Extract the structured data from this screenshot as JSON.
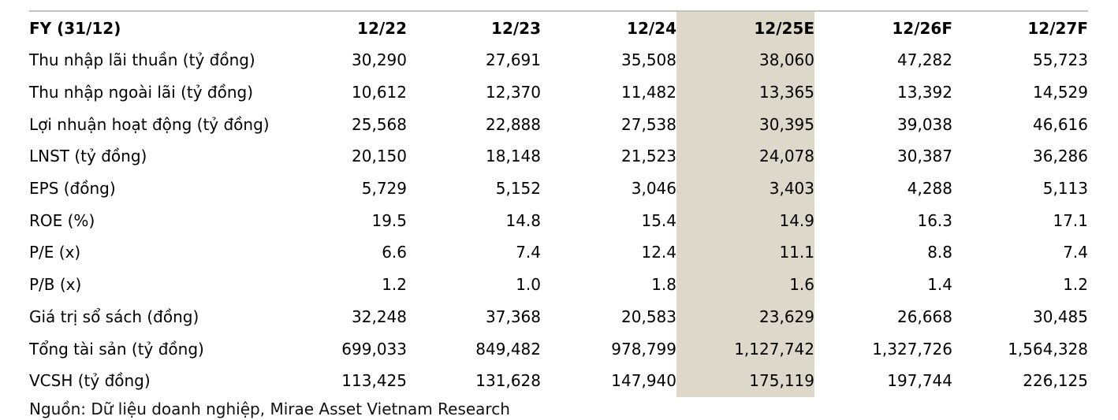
{
  "table": {
    "header": {
      "label": "FY (31/12)",
      "columns": [
        "12/22",
        "12/23",
        "12/24",
        "12/25E",
        "12/26F",
        "12/27F"
      ]
    },
    "highlight_index": 3,
    "highlight_column": "12/25E",
    "highlight_color": "#ded8cb",
    "rows": [
      {
        "label": "Thu nhập lãi thuần (tỷ đồng)",
        "values": [
          "30,290",
          "27,691",
          "35,508",
          "38,060",
          "47,282",
          "55,723"
        ]
      },
      {
        "label": "Thu nhập ngoài lãi (tỷ đồng)",
        "values": [
          "10,612",
          "12,370",
          "11,482",
          "13,365",
          "13,392",
          "14,529"
        ]
      },
      {
        "label": "Lợi nhuận hoạt động (tỷ đồng)",
        "values": [
          "25,568",
          "22,888",
          "27,538",
          "30,395",
          "39,038",
          "46,616"
        ]
      },
      {
        "label": "LNST (tỷ đồng)",
        "values": [
          "20,150",
          "18,148",
          "21,523",
          "24,078",
          "30,387",
          "36,286"
        ]
      },
      {
        "label": "EPS (đồng)",
        "values": [
          "5,729",
          "5,152",
          "3,046",
          "3,403",
          "4,288",
          "5,113"
        ]
      },
      {
        "label": "ROE (%)",
        "values": [
          "19.5",
          "14.8",
          "15.4",
          "14.9",
          "16.3",
          "17.1"
        ]
      },
      {
        "label": "P/E (x)",
        "values": [
          "6.6",
          "7.4",
          "12.4",
          "11.1",
          "8.8",
          "7.4"
        ]
      },
      {
        "label": "P/B (x)",
        "values": [
          "1.2",
          "1.0",
          "1.8",
          "1.6",
          "1.4",
          "1.2"
        ]
      },
      {
        "label": "Giá trị sổ sách (đồng)",
        "values": [
          "32,248",
          "37,368",
          "20,583",
          "23,629",
          "26,668",
          "30,485"
        ]
      },
      {
        "label": "Tổng tài sản (tỷ đồng)",
        "values": [
          "699,033",
          "849,482",
          "978,799",
          "1,127,742",
          "1,327,726",
          "1,564,328"
        ]
      },
      {
        "label": "VCSH (tỷ đồng)",
        "values": [
          "113,425",
          "131,628",
          "147,940",
          "175,119",
          "197,744",
          "226,125"
        ]
      }
    ],
    "source": "Nguồn: Dữ liệu doanh nghiệp, Mirae Asset Vietnam Research"
  },
  "chart_data": {
    "type": "table",
    "title": "FY (31/12) financial summary",
    "columns": [
      "12/22",
      "12/23",
      "12/24",
      "12/25E",
      "12/26F",
      "12/27F"
    ],
    "rows": [
      {
        "label": "Thu nhập lãi thuần (tỷ đồng)",
        "values": [
          30290,
          27691,
          35508,
          38060,
          47282,
          55723
        ]
      },
      {
        "label": "Thu nhập ngoài lãi (tỷ đồng)",
        "values": [
          10612,
          12370,
          11482,
          13365,
          13392,
          14529
        ]
      },
      {
        "label": "Lợi nhuận hoạt động (tỷ đồng)",
        "values": [
          25568,
          22888,
          27538,
          30395,
          39038,
          46616
        ]
      },
      {
        "label": "LNST (tỷ đồng)",
        "values": [
          20150,
          18148,
          21523,
          24078,
          30387,
          36286
        ]
      },
      {
        "label": "EPS (đồng)",
        "values": [
          5729,
          5152,
          3046,
          3403,
          4288,
          5113
        ]
      },
      {
        "label": "ROE (%)",
        "values": [
          19.5,
          14.8,
          15.4,
          14.9,
          16.3,
          17.1
        ]
      },
      {
        "label": "P/E (x)",
        "values": [
          6.6,
          7.4,
          12.4,
          11.1,
          8.8,
          7.4
        ]
      },
      {
        "label": "P/B (x)",
        "values": [
          1.2,
          1.0,
          1.8,
          1.6,
          1.4,
          1.2
        ]
      },
      {
        "label": "Giá trị sổ sách (đồng)",
        "values": [
          32248,
          37368,
          20583,
          23629,
          26668,
          30485
        ]
      },
      {
        "label": "Tổng tài sản (tỷ đồng)",
        "values": [
          699033,
          849482,
          978799,
          1127742,
          1327726,
          1564328
        ]
      },
      {
        "label": "VCSH (tỷ đồng)",
        "values": [
          113425,
          131628,
          147940,
          175119,
          197744,
          226125
        ]
      }
    ],
    "highlighted_column": "12/25E"
  }
}
